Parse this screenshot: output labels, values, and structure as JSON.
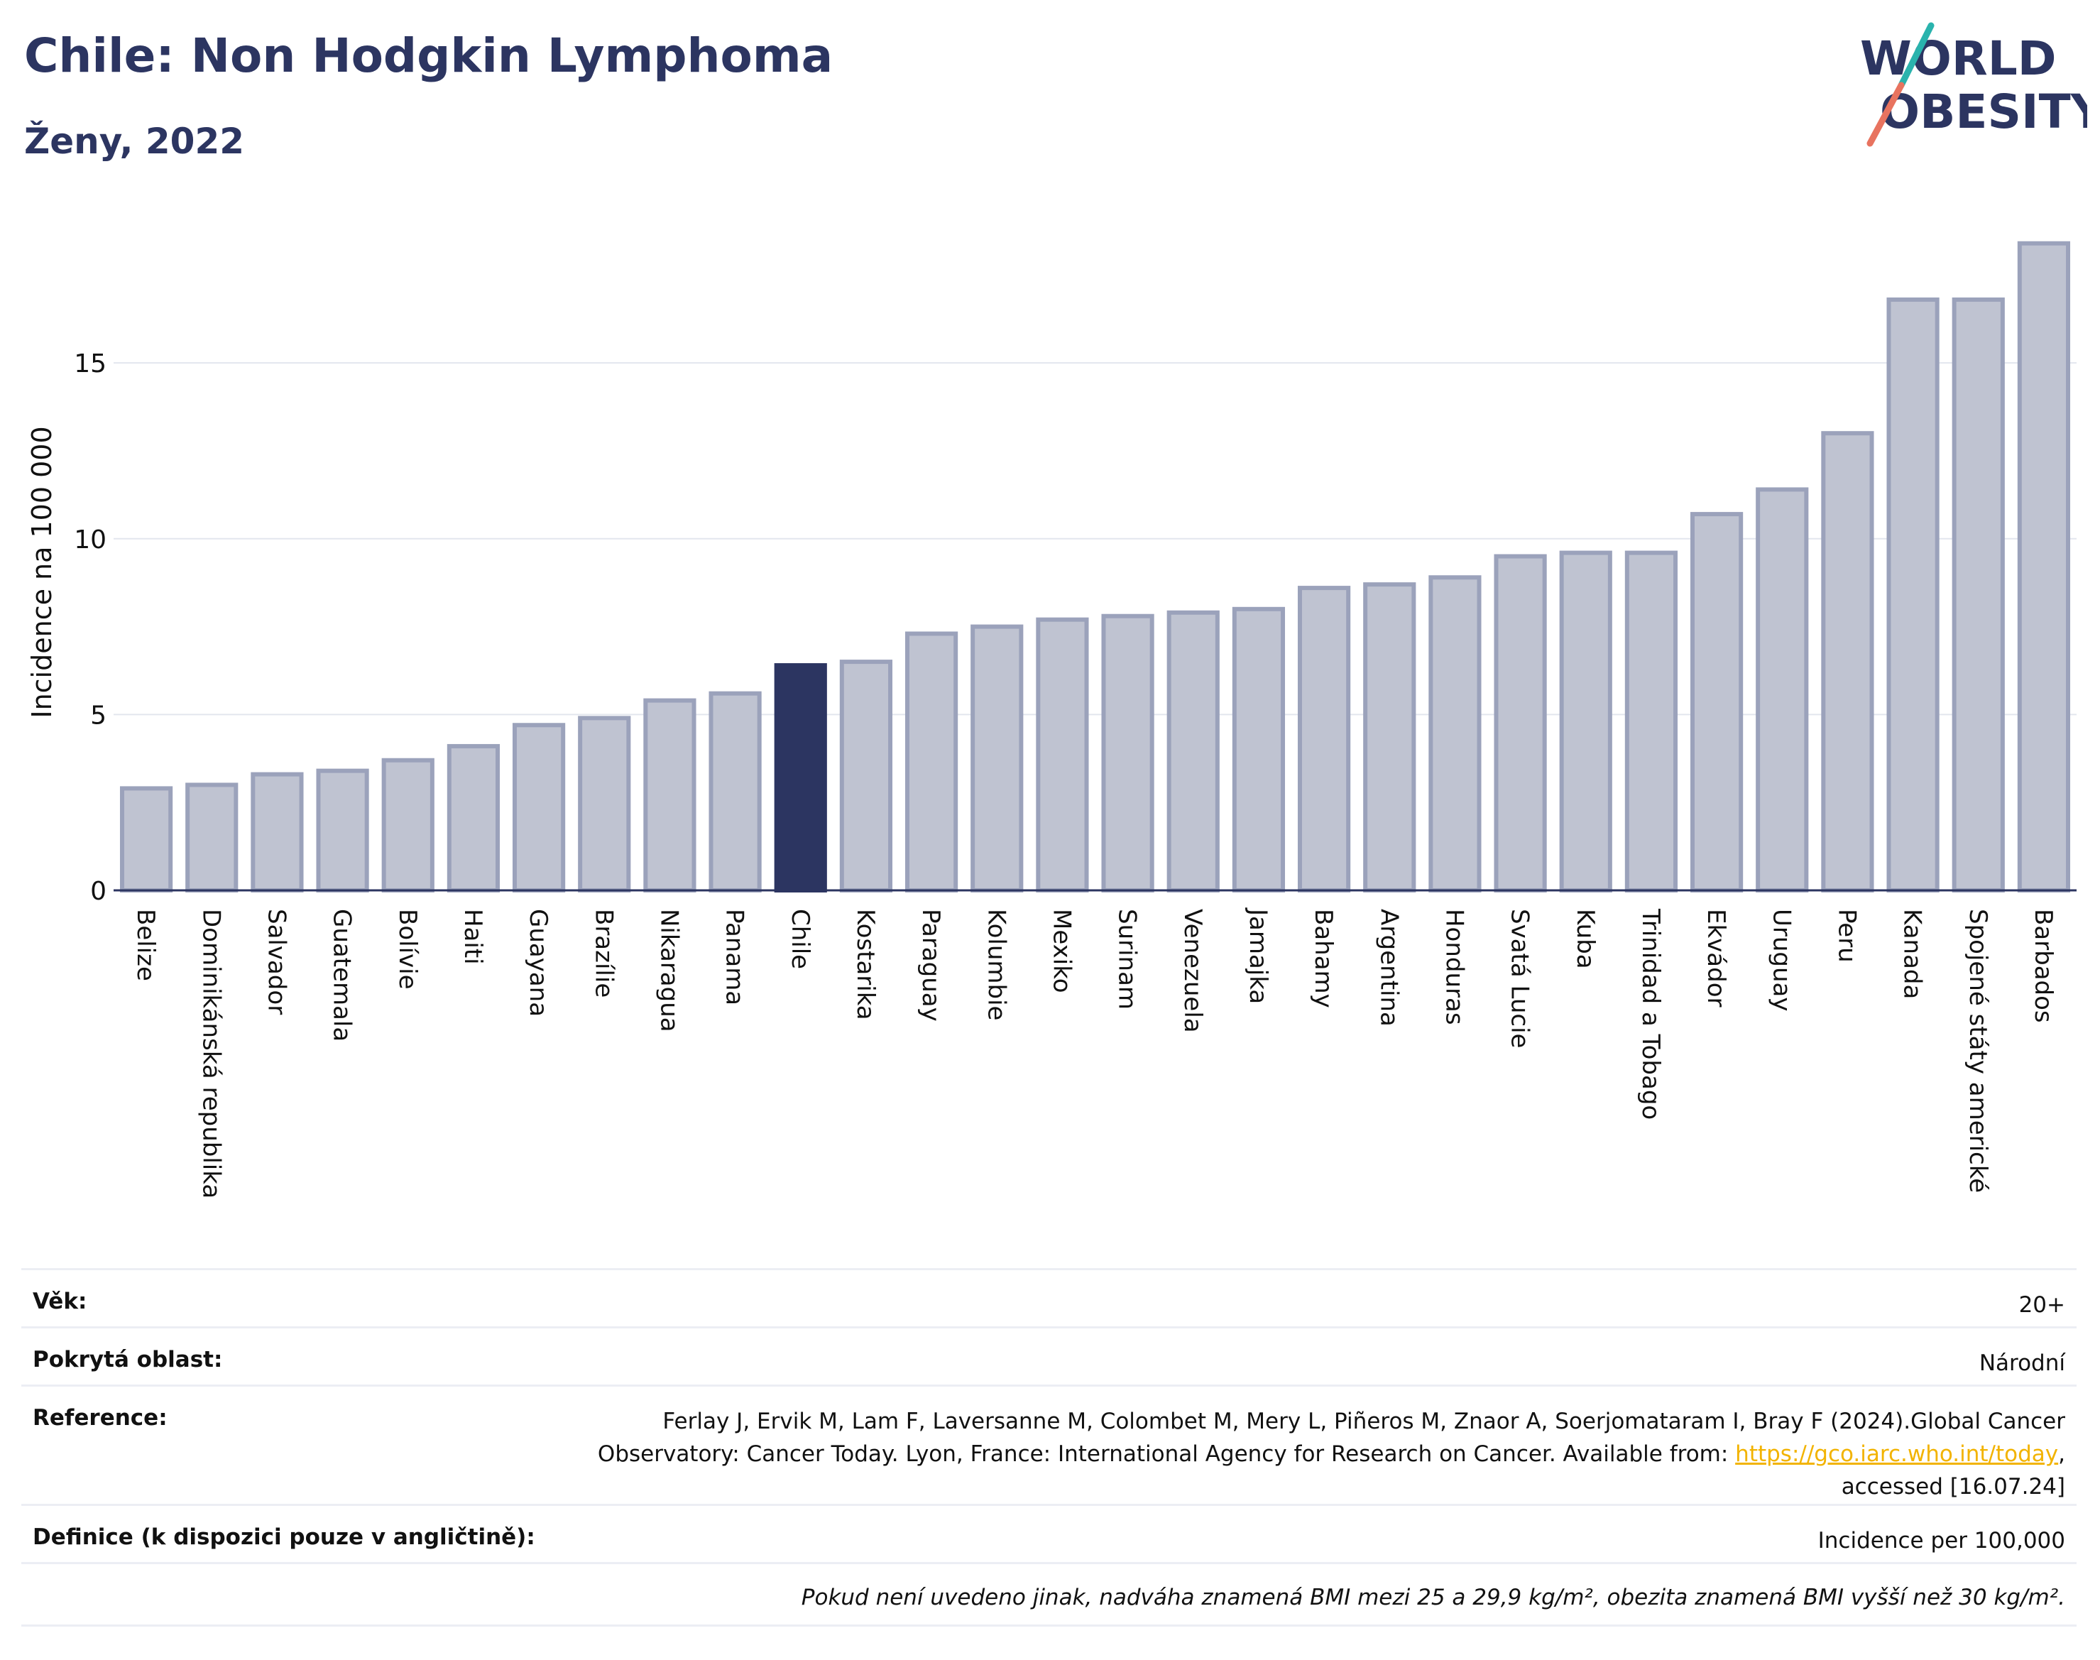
{
  "header": {
    "title": "Chile: Non Hodgkin Lymphoma",
    "subtitle": "Ženy, 2022",
    "logo_text": "WORLD OBESITY"
  },
  "colors": {
    "bar_default": "#bfc3d1",
    "bar_border": "#9ba2bb",
    "bar_highlight": "#2c3561",
    "title": "#2c3561",
    "link": "#f2b300",
    "logo_slash_teal": "#2ab3ad",
    "logo_slash_red": "#e8735f"
  },
  "chart_data": {
    "type": "bar",
    "title": "Chile: Non Hodgkin Lymphoma",
    "subtitle": "Ženy, 2022",
    "ylabel": "Incidence na 100 000",
    "xlabel": "",
    "ylim": [
      0,
      18.9
    ],
    "yticks": [
      0,
      5,
      10,
      15
    ],
    "grid": true,
    "highlight": "Chile",
    "categories": [
      "Belize",
      "Dominikánská republika",
      "Salvador",
      "Guatemala",
      "Bolívie",
      "Haiti",
      "Guayana",
      "Brazílie",
      "Nikaragua",
      "Panama",
      "Chile",
      "Kostarika",
      "Paraguay",
      "Kolumbie",
      "Mexiko",
      "Surinam",
      "Venezuela",
      "Jamajka",
      "Bahamy",
      "Argentina",
      "Honduras",
      "Svatá Lucie",
      "Kuba",
      "Trinidad a Tobago",
      "Ekvádor",
      "Uruguay",
      "Peru",
      "Kanada",
      "Spojené státy americké",
      "Barbados"
    ],
    "values": [
      2.9,
      3.0,
      3.3,
      3.4,
      3.7,
      4.1,
      4.7,
      4.9,
      5.4,
      5.6,
      6.4,
      6.5,
      7.3,
      7.5,
      7.7,
      7.8,
      7.9,
      8.0,
      8.6,
      8.7,
      8.9,
      9.5,
      9.6,
      9.6,
      10.7,
      11.4,
      13.0,
      16.8,
      16.8,
      18.4
    ]
  },
  "meta": {
    "age_label": "Věk:",
    "age_value": "20+",
    "area_label": "Pokrytá oblast:",
    "area_value": "Národní",
    "ref_label": "Reference:",
    "ref_line1": "Ferlay J, Ervik M, Lam F, Laversanne M, Colombet M, Mery L, Piñeros M, Znaor A, Soerjomataram I, Bray F (2024).Global Cancer",
    "ref_line2_pre": "Observatory: Cancer Today. Lyon, France: International Agency for Research on Cancer. Available from: ",
    "ref_link": "https://gco.iarc.who.int/today",
    "ref_line2_post": ",",
    "ref_line3": "accessed [16.07.24]",
    "def_label": "Definice (k dispozici pouze v angličtině):",
    "def_value": "Incidence per 100,000",
    "note": "Pokud není uvedeno jinak, nadváha znamená BMI mezi 25 a 29,9 kg/m², obezita znamená BMI vyšší než 30 kg/m²."
  }
}
